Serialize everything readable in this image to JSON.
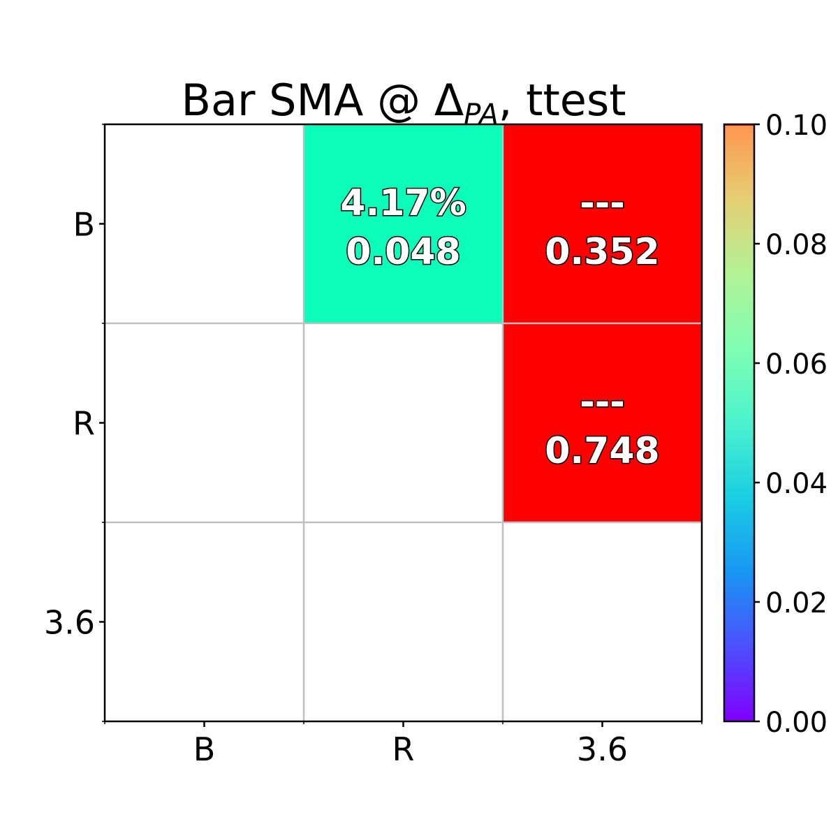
{
  "chart_data": {
    "type": "heatmap",
    "title": "Bar SMA @ ΔPA, ttest",
    "title_parts": {
      "prefix": "Bar SMA @ Δ",
      "subscript": "PA",
      "suffix": ", ttest"
    },
    "row_labels": [
      "B",
      "R",
      "3.6"
    ],
    "col_labels": [
      "B",
      "R",
      "3.6"
    ],
    "cells": [
      {
        "row": 0,
        "col": 1,
        "value": 0.048,
        "effect": "4.17%",
        "p_label": "0.048"
      },
      {
        "row": 0,
        "col": 2,
        "value": 0.352,
        "effect": "---",
        "p_label": "0.352"
      },
      {
        "row": 1,
        "col": 2,
        "value": 0.748,
        "effect": "---",
        "p_label": "0.748"
      }
    ],
    "colorbar": {
      "min": 0.0,
      "max": 0.1,
      "ticks": [
        "0.00",
        "0.02",
        "0.04",
        "0.06",
        "0.08",
        "0.10"
      ],
      "colormap": "rainbow"
    },
    "grid": true,
    "grid_color": "#c0c0c0"
  }
}
